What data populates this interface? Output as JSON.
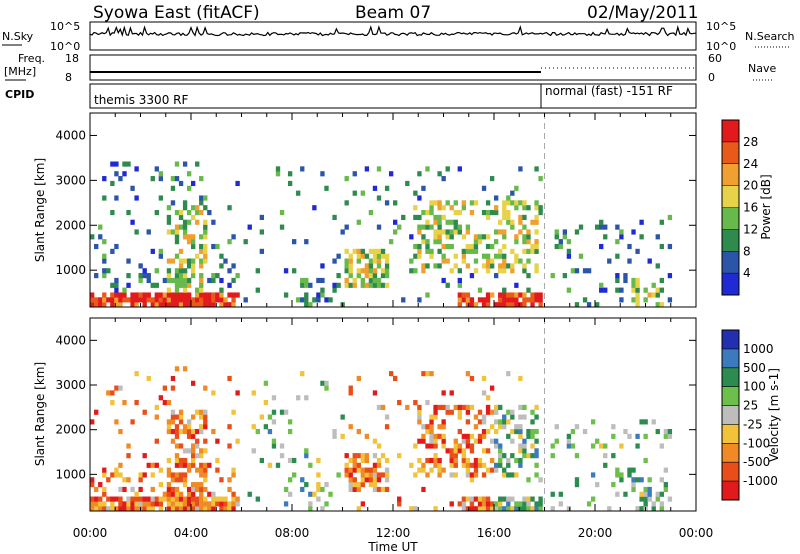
{
  "header": {
    "station": "Syowa East (fitACF)",
    "beam": "Beam 07",
    "date": "02/May/2011"
  },
  "small_panels": {
    "nsky_label": "N.Sky",
    "nsky_ticks": [
      "10^5",
      "10^0"
    ],
    "nsearch_label": "N.Search",
    "nsearch_ticks": [
      "10^5",
      "10^0"
    ],
    "freq_label": "Freq.",
    "freq_unit": "[MHz]",
    "freq_ticks": [
      "18",
      "8"
    ],
    "nave_ticks": [
      "60",
      "0"
    ],
    "nave_label": "Nave",
    "cpid_label": "CPID",
    "cpid_left": "themis 3300 RF",
    "cpid_right": "normal (fast) -151 RF"
  },
  "chart_data": [
    {
      "type": "heatmap",
      "name": "power",
      "ylabel": "Slant Range [km]",
      "xlabel": "Time UT",
      "x_ticks": [
        "00:00",
        "04:00",
        "08:00",
        "12:00",
        "16:00",
        "20:00",
        "00:00"
      ],
      "x_range_hours": [
        0,
        24
      ],
      "y_ticks": [
        1000,
        2000,
        3000,
        4000
      ],
      "ylim": [
        180,
        4500
      ],
      "colorbar_label": "Power [dB]",
      "colorbar_ticks": [
        4,
        8,
        12,
        16,
        20,
        24,
        28
      ],
      "colorbar_colors": [
        "#1f2ad6",
        "#2b55a8",
        "#2f8a4e",
        "#66b94a",
        "#e8d24a",
        "#f0a030",
        "#e85a1a",
        "#e31a1c"
      ],
      "mode_change_hour": 18.0
    },
    {
      "type": "heatmap",
      "name": "velocity",
      "ylabel": "Slant Range [km]",
      "xlabel": "Time UT",
      "x_ticks": [
        "00:00",
        "04:00",
        "08:00",
        "12:00",
        "16:00",
        "20:00",
        "00:00"
      ],
      "x_range_hours": [
        0,
        24
      ],
      "y_ticks": [
        1000,
        2000,
        3000,
        4000
      ],
      "ylim": [
        180,
        4500
      ],
      "colorbar_label": "Velocity [m s-1]",
      "colorbar_ticks": [
        "1000",
        "500",
        "100",
        "25",
        "-25",
        "-100",
        "-500",
        "-1000"
      ],
      "colorbar_colors": [
        "#2030b0",
        "#3b7bbd",
        "#2c8c50",
        "#6cc04a",
        "#bdbdbd",
        "#f2c23a",
        "#f08a24",
        "#e84d1a",
        "#e31a1c"
      ],
      "mode_change_hour": 18.0
    }
  ]
}
